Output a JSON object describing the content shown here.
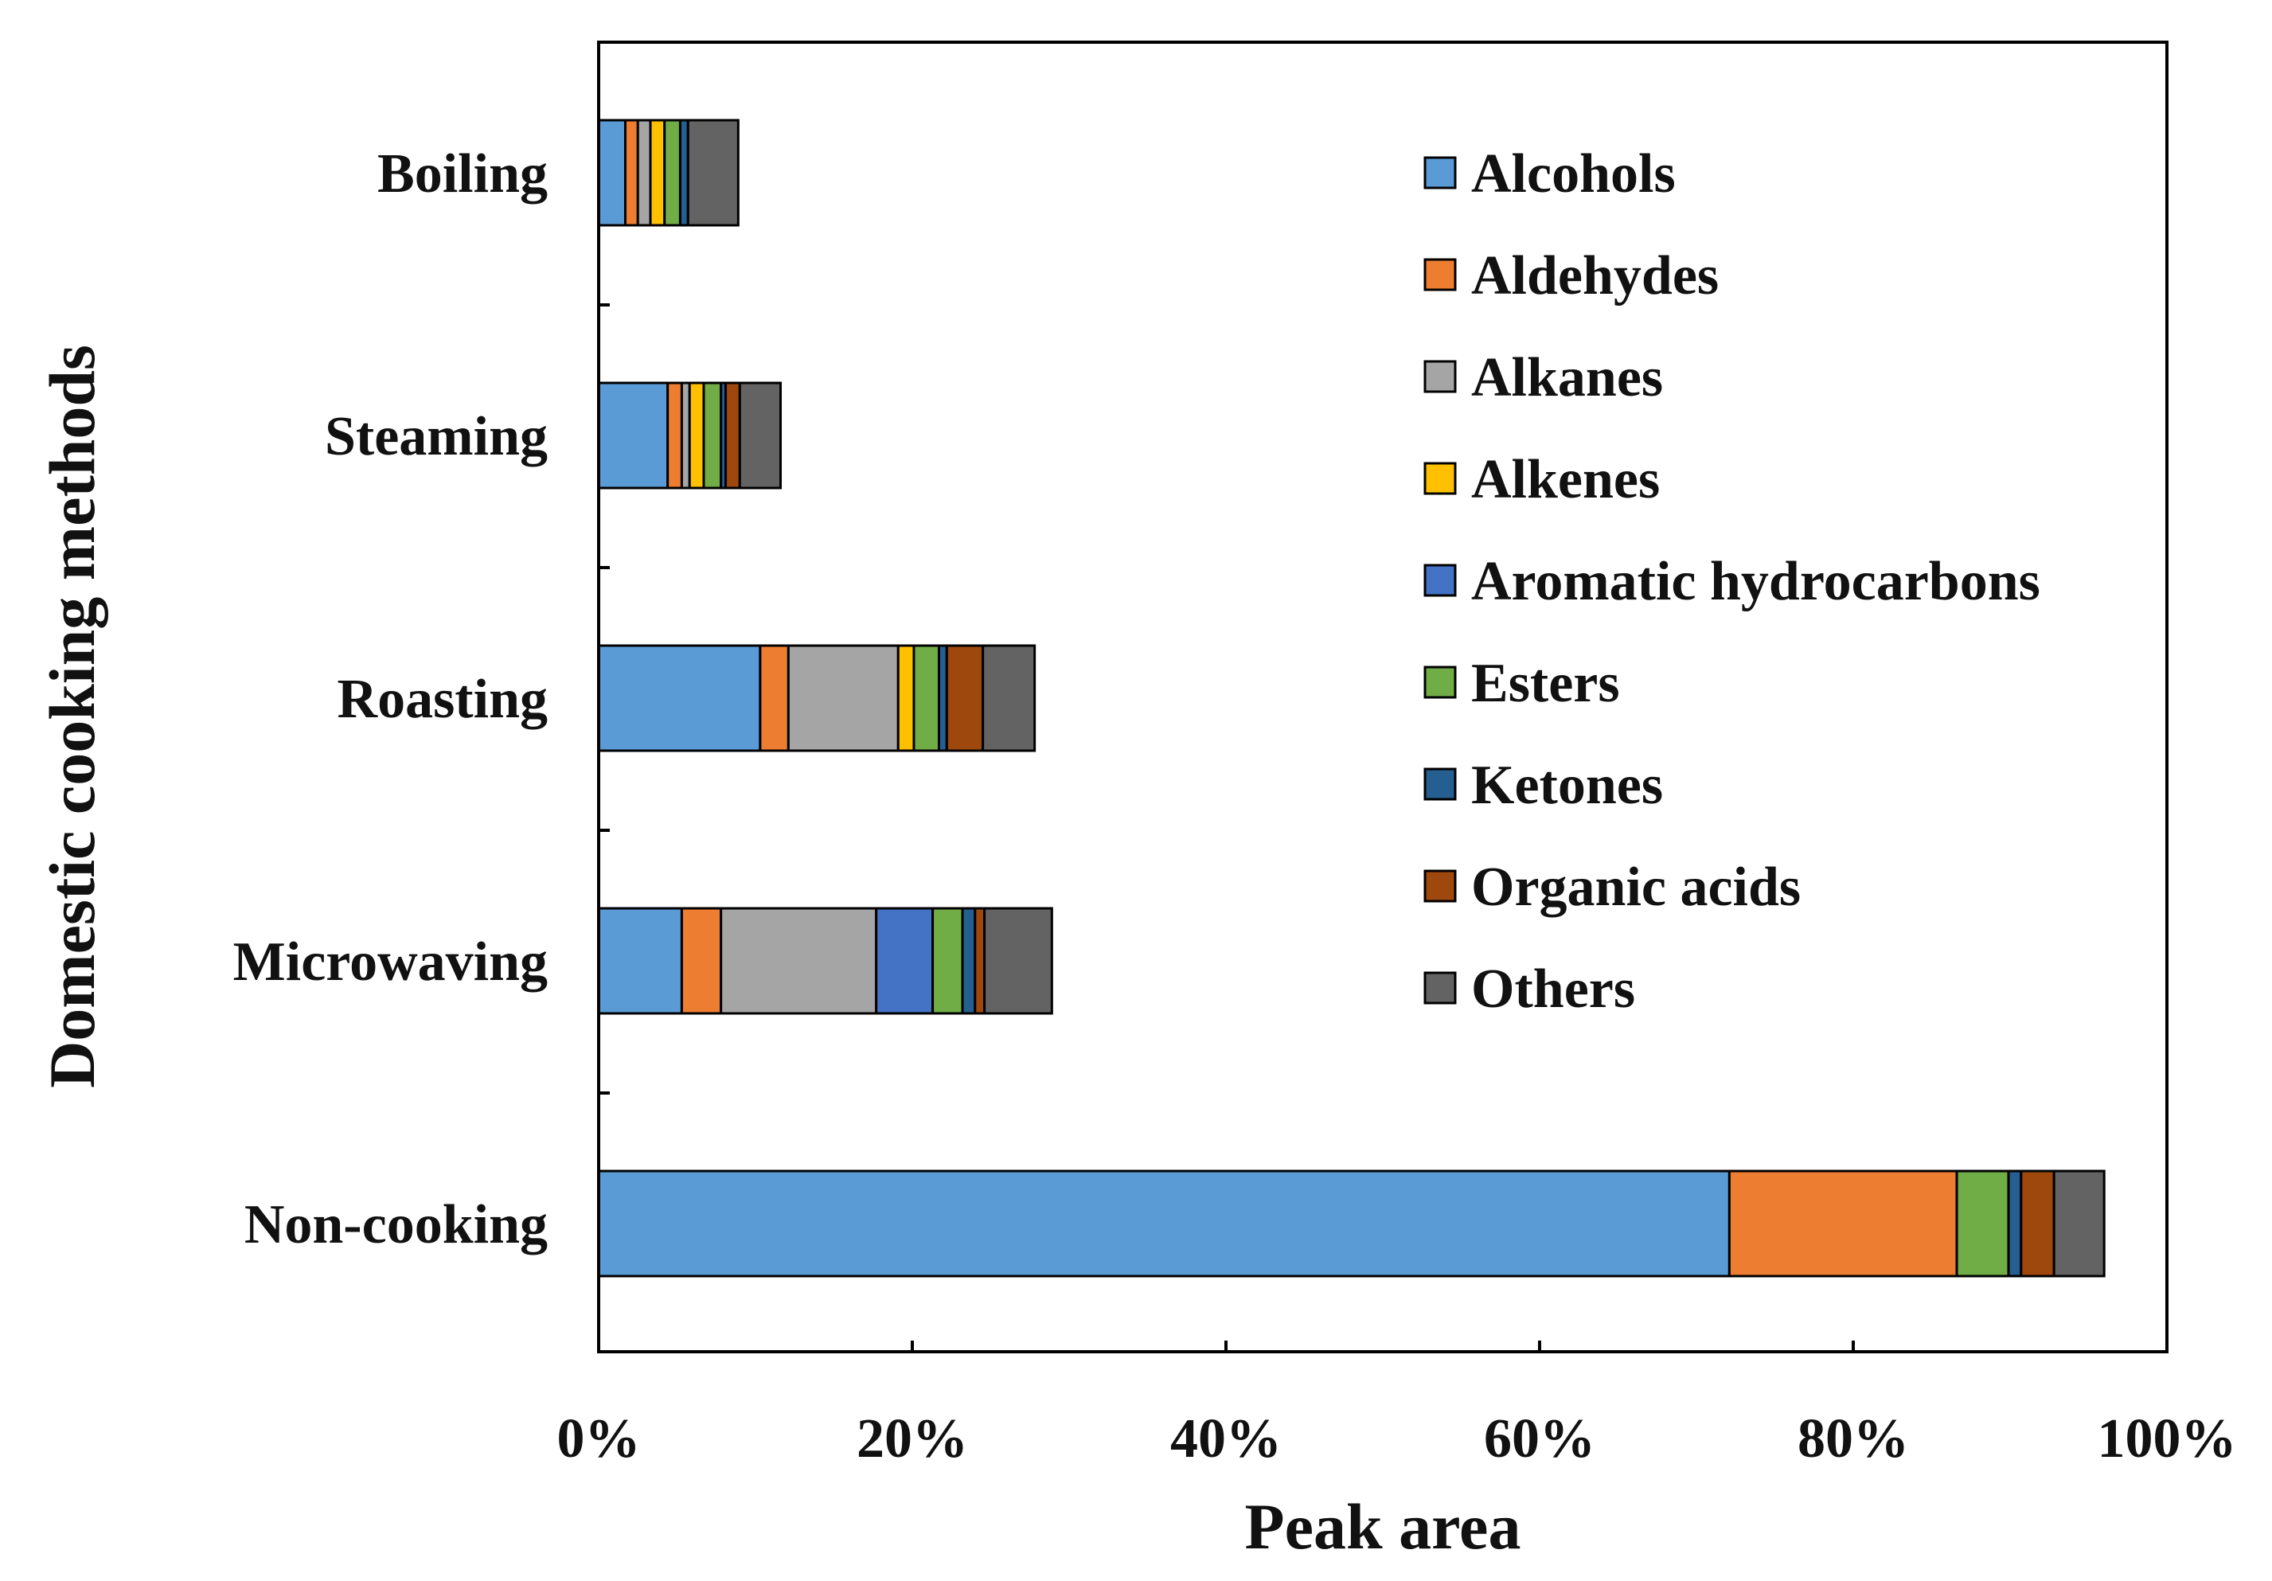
{
  "chart_data": {
    "type": "bar",
    "orientation": "horizontal",
    "stacked": true,
    "title": "",
    "xlabel": "Peak area",
    "ylabel": "Domestic cooking methods",
    "xlim": [
      0,
      100
    ],
    "x_ticks": [
      0,
      20,
      40,
      60,
      80,
      100
    ],
    "x_tick_labels": [
      "0%",
      "20%",
      "40%",
      "60%",
      "80%",
      "100%"
    ],
    "grid": false,
    "legend_position": "top-right",
    "categories": [
      "Boiling",
      "Steaming",
      "Roasting",
      "Microwaving",
      "Non-cooking"
    ],
    "series": [
      {
        "name": "Alcohols",
        "color": "#5b9bd5",
        "values": [
          1.7,
          4.4,
          10.3,
          5.3,
          72.1
        ]
      },
      {
        "name": "Aldehydes",
        "color": "#ed7d31",
        "values": [
          0.8,
          0.9,
          1.8,
          2.5,
          14.5
        ]
      },
      {
        "name": "Alkanes",
        "color": "#a5a5a5",
        "values": [
          0.8,
          0.5,
          7.0,
          9.9,
          0.0
        ]
      },
      {
        "name": "Alkenes",
        "color": "#ffc000",
        "values": [
          0.9,
          0.9,
          1.0,
          0.0,
          0.0
        ]
      },
      {
        "name": "Aromatic hydrocarbons",
        "color": "#4472c4",
        "values": [
          0.0,
          0.0,
          0.0,
          3.6,
          0.0
        ]
      },
      {
        "name": "Esters",
        "color": "#70ad47",
        "values": [
          1.0,
          1.1,
          1.6,
          1.9,
          3.3
        ]
      },
      {
        "name": "Ketones",
        "color": "#255e91",
        "values": [
          0.5,
          0.3,
          0.5,
          0.8,
          0.8
        ]
      },
      {
        "name": "Organic acids",
        "color": "#9e480e",
        "values": [
          0.0,
          0.9,
          2.3,
          0.6,
          2.1
        ]
      },
      {
        "name": "Others",
        "color": "#636363",
        "values": [
          3.2,
          2.6,
          3.3,
          4.3,
          3.2
        ]
      }
    ]
  }
}
